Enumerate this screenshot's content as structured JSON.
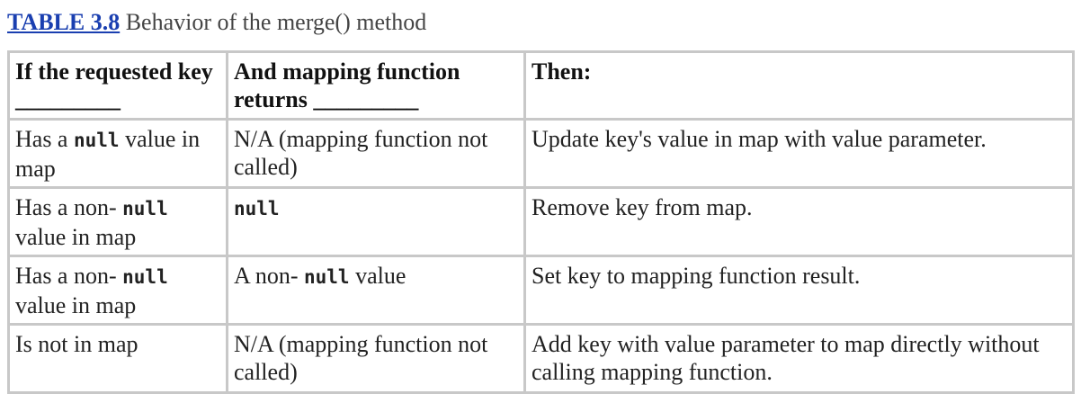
{
  "caption": {
    "link_label": "TABLE 3.8",
    "title": "Behavior of the merge() method"
  },
  "table": {
    "headers": [
      "If the requested key _________",
      "And mapping function returns _________",
      "Then:"
    ],
    "rows": [
      {
        "key_prefix": "Has a ",
        "key_code": "null",
        "key_suffix": " value in map",
        "returns_text": "N/A (mapping function not called)",
        "then": "Update key's value in map with value parameter."
      },
      {
        "key_prefix": "Has a non- ",
        "key_code": "null",
        "key_suffix": " value in map",
        "returns_code": "null",
        "then": "Remove key from map."
      },
      {
        "key_prefix": "Has a non- ",
        "key_code": "null",
        "key_suffix": " value in map",
        "returns_prefix": "A non- ",
        "returns_code": "null",
        "returns_suffix": " value",
        "then": "Set key to mapping function result."
      },
      {
        "key_text": "Is not in map",
        "returns_text": "N/A (mapping function not called)",
        "then": "Add key with value parameter to map directly without calling mapping function."
      }
    ]
  }
}
